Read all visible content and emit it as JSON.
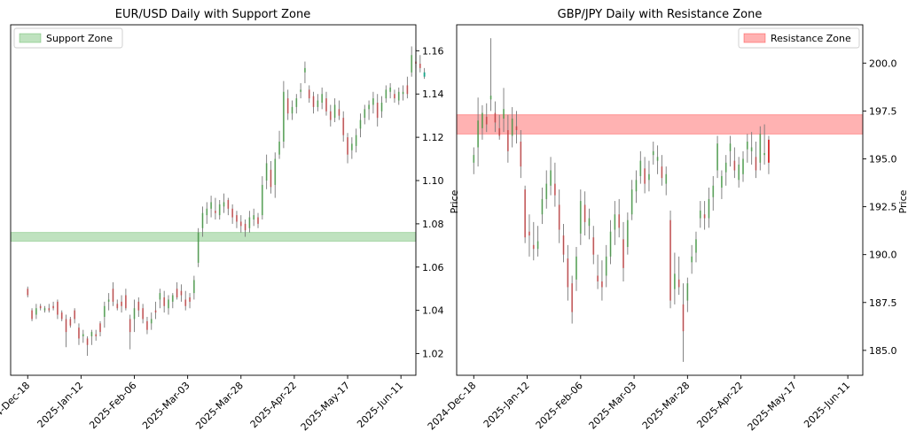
{
  "chart_data": [
    {
      "type": "candlestick",
      "title": "EUR/USD Daily with Support Zone",
      "xlabel": "",
      "ylabel": "Price",
      "ylim": [
        1.01,
        1.172
      ],
      "xlim": [
        "2024-12-10",
        "2025-06-18"
      ],
      "yticks": [
        1.02,
        1.04,
        1.06,
        1.08,
        1.1,
        1.12,
        1.14,
        1.16
      ],
      "ytick_labels": [
        "1.02",
        "1.04",
        "1.06",
        "1.08",
        "1.10",
        "1.12",
        "1.14",
        "1.16"
      ],
      "xticks": [
        "2024-12-18",
        "2025-01-12",
        "2025-02-06",
        "2025-03-03",
        "2025-03-28",
        "2025-04-22",
        "2025-05-17",
        "2025-06-11"
      ],
      "xtick_labels": [
        "2024-Dec-18",
        "2025-Jan-12",
        "2025-Feb-06",
        "2025-Mar-03",
        "2025-Mar-28",
        "2025-Apr-22",
        "2025-May-17",
        "2025-Jun-11"
      ],
      "legend": {
        "label": "Support Zone",
        "position": "upper-left"
      },
      "zone": {
        "low": 1.072,
        "high": 1.076,
        "color": "#2ca02c"
      },
      "start_date": "2024-12-18",
      "grid": false,
      "ohlc": [
        [
          1.05,
          1.051,
          1.046,
          1.047
        ],
        [
          1.04,
          1.041,
          1.035,
          1.036
        ],
        [
          1.038,
          1.043,
          1.036,
          1.041
        ],
        [
          1.042,
          1.043,
          1.04,
          1.041
        ],
        [
          1.04,
          1.042,
          1.039,
          1.041
        ],
        [
          1.041,
          1.043,
          1.039,
          1.04
        ],
        [
          1.042,
          1.044,
          1.04,
          1.041
        ],
        [
          1.044,
          1.045,
          1.036,
          1.038
        ],
        [
          1.039,
          1.04,
          1.035,
          1.036
        ],
        [
          1.036,
          1.038,
          1.023,
          1.03
        ],
        [
          1.036,
          1.037,
          1.032,
          1.033
        ],
        [
          1.04,
          1.041,
          1.034,
          1.036
        ],
        [
          1.032,
          1.034,
          1.024,
          1.027
        ],
        [
          1.028,
          1.031,
          1.025,
          1.029
        ],
        [
          1.027,
          1.028,
          1.019,
          1.024
        ],
        [
          1.028,
          1.031,
          1.024,
          1.03
        ],
        [
          1.029,
          1.031,
          1.026,
          1.028
        ],
        [
          1.034,
          1.035,
          1.028,
          1.03
        ],
        [
          1.037,
          1.044,
          1.032,
          1.042
        ],
        [
          1.044,
          1.048,
          1.04,
          1.045
        ],
        [
          1.05,
          1.053,
          1.042,
          1.044
        ],
        [
          1.043,
          1.045,
          1.04,
          1.041
        ],
        [
          1.044,
          1.047,
          1.039,
          1.042
        ],
        [
          1.047,
          1.05,
          1.04,
          1.041
        ],
        [
          1.036,
          1.038,
          1.022,
          1.03
        ],
        [
          1.036,
          1.045,
          1.03,
          1.041
        ],
        [
          1.044,
          1.046,
          1.037,
          1.04
        ],
        [
          1.041,
          1.043,
          1.034,
          1.036
        ],
        [
          1.035,
          1.037,
          1.029,
          1.031
        ],
        [
          1.034,
          1.039,
          1.031,
          1.036
        ],
        [
          1.04,
          1.044,
          1.036,
          1.039
        ],
        [
          1.045,
          1.05,
          1.041,
          1.048
        ],
        [
          1.046,
          1.049,
          1.039,
          1.042
        ],
        [
          1.041,
          1.047,
          1.038,
          1.045
        ],
        [
          1.044,
          1.048,
          1.041,
          1.047
        ],
        [
          1.05,
          1.053,
          1.045,
          1.046
        ],
        [
          1.049,
          1.052,
          1.044,
          1.047
        ],
        [
          1.045,
          1.049,
          1.04,
          1.042
        ],
        [
          1.046,
          1.048,
          1.041,
          1.044
        ],
        [
          1.048,
          1.056,
          1.045,
          1.054
        ],
        [
          1.062,
          1.078,
          1.06,
          1.076
        ],
        [
          1.078,
          1.088,
          1.074,
          1.085
        ],
        [
          1.084,
          1.09,
          1.08,
          1.087
        ],
        [
          1.087,
          1.093,
          1.083,
          1.09
        ],
        [
          1.086,
          1.092,
          1.082,
          1.085
        ],
        [
          1.084,
          1.091,
          1.082,
          1.089
        ],
        [
          1.088,
          1.094,
          1.085,
          1.09
        ],
        [
          1.091,
          1.092,
          1.084,
          1.087
        ],
        [
          1.087,
          1.089,
          1.08,
          1.083
        ],
        [
          1.084,
          1.086,
          1.078,
          1.081
        ],
        [
          1.081,
          1.084,
          1.076,
          1.079
        ],
        [
          1.08,
          1.082,
          1.074,
          1.077
        ],
        [
          1.078,
          1.086,
          1.076,
          1.083
        ],
        [
          1.082,
          1.087,
          1.079,
          1.084
        ],
        [
          1.083,
          1.085,
          1.078,
          1.08
        ],
        [
          1.084,
          1.102,
          1.082,
          1.098
        ],
        [
          1.1,
          1.112,
          1.096,
          1.108
        ],
        [
          1.105,
          1.109,
          1.094,
          1.097
        ],
        [
          1.098,
          1.113,
          1.092,
          1.11
        ],
        [
          1.112,
          1.123,
          1.11,
          1.118
        ],
        [
          1.118,
          1.146,
          1.115,
          1.141
        ],
        [
          1.138,
          1.142,
          1.128,
          1.131
        ],
        [
          1.131,
          1.137,
          1.128,
          1.134
        ],
        [
          1.134,
          1.14,
          1.131,
          1.138
        ],
        [
          1.141,
          1.145,
          1.138,
          1.142
        ],
        [
          1.15,
          1.155,
          1.145,
          1.152
        ],
        [
          1.142,
          1.144,
          1.136,
          1.138
        ],
        [
          1.139,
          1.141,
          1.131,
          1.134
        ],
        [
          1.134,
          1.14,
          1.132,
          1.137
        ],
        [
          1.136,
          1.143,
          1.133,
          1.14
        ],
        [
          1.138,
          1.141,
          1.13,
          1.132
        ],
        [
          1.132,
          1.135,
          1.125,
          1.128
        ],
        [
          1.129,
          1.138,
          1.127,
          1.135
        ],
        [
          1.133,
          1.137,
          1.128,
          1.13
        ],
        [
          1.129,
          1.132,
          1.118,
          1.121
        ],
        [
          1.12,
          1.122,
          1.108,
          1.112
        ],
        [
          1.114,
          1.12,
          1.11,
          1.117
        ],
        [
          1.116,
          1.124,
          1.113,
          1.121
        ],
        [
          1.124,
          1.131,
          1.12,
          1.128
        ],
        [
          1.129,
          1.135,
          1.126,
          1.133
        ],
        [
          1.133,
          1.137,
          1.128,
          1.135
        ],
        [
          1.135,
          1.141,
          1.131,
          1.138
        ],
        [
          1.136,
          1.14,
          1.125,
          1.129
        ],
        [
          1.132,
          1.139,
          1.129,
          1.136
        ],
        [
          1.138,
          1.144,
          1.136,
          1.142
        ],
        [
          1.141,
          1.145,
          1.138,
          1.143
        ],
        [
          1.14,
          1.142,
          1.136,
          1.138
        ],
        [
          1.137,
          1.143,
          1.135,
          1.141
        ],
        [
          1.14,
          1.144,
          1.137,
          1.141
        ],
        [
          1.144,
          1.148,
          1.138,
          1.14
        ],
        [
          1.15,
          1.162,
          1.148,
          1.158
        ],
        [
          1.155,
          1.161,
          1.152,
          1.154
        ],
        [
          1.154,
          1.158,
          1.15,
          1.152
        ],
        [
          1.15,
          1.152,
          1.147,
          1.148
        ]
      ]
    },
    {
      "type": "candlestick",
      "title": "GBP/JPY Daily with Resistance Zone",
      "xlabel": "",
      "ylabel": "Price",
      "ylim": [
        183.7,
        202.0
      ],
      "xlim": [
        "2024-12-10",
        "2025-06-18"
      ],
      "yticks": [
        185.0,
        187.5,
        190.0,
        192.5,
        195.0,
        197.5,
        200.0
      ],
      "ytick_labels": [
        "185.0",
        "187.5",
        "190.0",
        "192.5",
        "195.0",
        "197.5",
        "200.0"
      ],
      "xticks": [
        "2024-12-18",
        "2025-01-12",
        "2025-02-06",
        "2025-03-03",
        "2025-03-28",
        "2025-04-22",
        "2025-05-17",
        "2025-06-11"
      ],
      "xtick_labels": [
        "2024-Dec-18",
        "2025-Jan-12",
        "2025-Feb-06",
        "2025-Mar-03",
        "2025-Mar-28",
        "2025-Apr-22",
        "2025-May-17",
        "2025-Jun-11"
      ],
      "legend": {
        "label": "Resistance Zone",
        "position": "upper-right"
      },
      "zone": {
        "low": 196.3,
        "high": 197.3,
        "color": "#ff0000"
      },
      "start_date": "2024-12-18",
      "grid": false,
      "ohlc": [
        [
          194.8,
          195.6,
          194.2,
          195.2
        ],
        [
          195.6,
          198.2,
          194.6,
          197.0
        ],
        [
          196.6,
          197.8,
          196.0,
          197.4
        ],
        [
          197.2,
          197.9,
          196.4,
          196.8
        ],
        [
          198.1,
          201.3,
          197.5,
          198.3
        ],
        [
          197.4,
          198.0,
          196.4,
          196.9
        ],
        [
          196.6,
          197.3,
          196.0,
          196.2
        ],
        [
          197.1,
          198.7,
          196.4,
          197.6
        ],
        [
          196.5,
          197.3,
          194.8,
          195.4
        ],
        [
          196.2,
          197.7,
          195.6,
          197.1
        ],
        [
          196.7,
          197.5,
          195.8,
          196.5
        ],
        [
          195.9,
          196.5,
          194.0,
          194.6
        ],
        [
          193.4,
          193.6,
          190.6,
          190.9
        ],
        [
          191.2,
          192.1,
          189.9,
          191.0
        ],
        [
          190.5,
          191.7,
          189.7,
          190.3
        ],
        [
          190.3,
          191.5,
          189.9,
          190.7
        ],
        [
          192.1,
          193.5,
          191.6,
          192.9
        ],
        [
          192.9,
          194.4,
          192.4,
          193.7
        ],
        [
          193.6,
          195.1,
          193.1,
          194.4
        ],
        [
          193.7,
          194.8,
          192.5,
          193.1
        ],
        [
          192.6,
          193.4,
          190.6,
          191.3
        ],
        [
          191.0,
          191.6,
          189.6,
          190.0
        ],
        [
          189.8,
          190.5,
          187.6,
          188.3
        ],
        [
          188.5,
          188.9,
          186.4,
          187.0
        ],
        [
          188.7,
          190.4,
          188.1,
          189.9
        ],
        [
          191.1,
          193.4,
          190.5,
          192.8
        ],
        [
          192.6,
          193.3,
          191.0,
          191.7
        ],
        [
          191.5,
          192.4,
          190.8,
          191.9
        ],
        [
          190.9,
          191.5,
          189.5,
          190.0
        ],
        [
          188.9,
          190.0,
          188.2,
          188.6
        ],
        [
          188.6,
          189.7,
          187.6,
          188.3
        ],
        [
          188.9,
          190.5,
          188.3,
          189.9
        ],
        [
          189.9,
          191.8,
          189.5,
          191.2
        ],
        [
          191.3,
          192.8,
          190.5,
          192.1
        ],
        [
          192.1,
          192.9,
          190.9,
          191.4
        ],
        [
          190.8,
          191.7,
          188.6,
          189.3
        ],
        [
          190.4,
          192.2,
          190.0,
          191.8
        ],
        [
          192.1,
          193.9,
          191.8,
          193.4
        ],
        [
          193.3,
          194.4,
          192.7,
          193.9
        ],
        [
          194.1,
          195.4,
          193.7,
          194.9
        ],
        [
          194.5,
          195.1,
          193.2,
          193.7
        ],
        [
          193.9,
          194.9,
          193.3,
          194.2
        ],
        [
          195.2,
          195.9,
          194.7,
          195.4
        ],
        [
          194.9,
          195.7,
          194.2,
          195.1
        ],
        [
          194.6,
          195.2,
          193.6,
          194.0
        ],
        [
          193.7,
          194.6,
          193.1,
          194.2
        ],
        [
          191.8,
          192.3,
          187.2,
          187.6
        ],
        [
          188.2,
          190.1,
          187.4,
          189.0
        ],
        [
          188.7,
          189.9,
          187.9,
          188.3
        ],
        [
          187.4,
          188.5,
          184.4,
          186.0
        ],
        [
          187.6,
          188.8,
          187.0,
          188.5
        ],
        [
          189.6,
          190.5,
          189.0,
          189.9
        ],
        [
          190.1,
          191.2,
          189.6,
          190.8
        ],
        [
          191.9,
          192.8,
          191.4,
          192.3
        ],
        [
          192.1,
          192.8,
          191.3,
          191.9
        ],
        [
          191.9,
          193.5,
          191.4,
          192.9
        ],
        [
          193.0,
          194.1,
          192.3,
          193.6
        ],
        [
          194.4,
          196.2,
          194.0,
          195.8
        ],
        [
          193.5,
          194.4,
          192.9,
          194.1
        ],
        [
          194.3,
          195.2,
          193.6,
          194.8
        ],
        [
          195.4,
          196.2,
          194.6,
          195.8
        ],
        [
          194.9,
          195.6,
          194.0,
          194.4
        ],
        [
          193.9,
          195.1,
          193.5,
          194.7
        ],
        [
          194.2,
          195.4,
          193.8,
          195.0
        ],
        [
          195.5,
          196.3,
          194.8,
          195.9
        ],
        [
          195.4,
          196.4,
          194.7,
          195.6
        ],
        [
          195.1,
          195.9,
          194.0,
          194.4
        ],
        [
          194.8,
          196.7,
          194.4,
          196.3
        ],
        [
          195.2,
          196.8,
          194.7,
          195.3
        ],
        [
          196.0,
          196.2,
          194.2,
          194.8
        ]
      ]
    }
  ]
}
